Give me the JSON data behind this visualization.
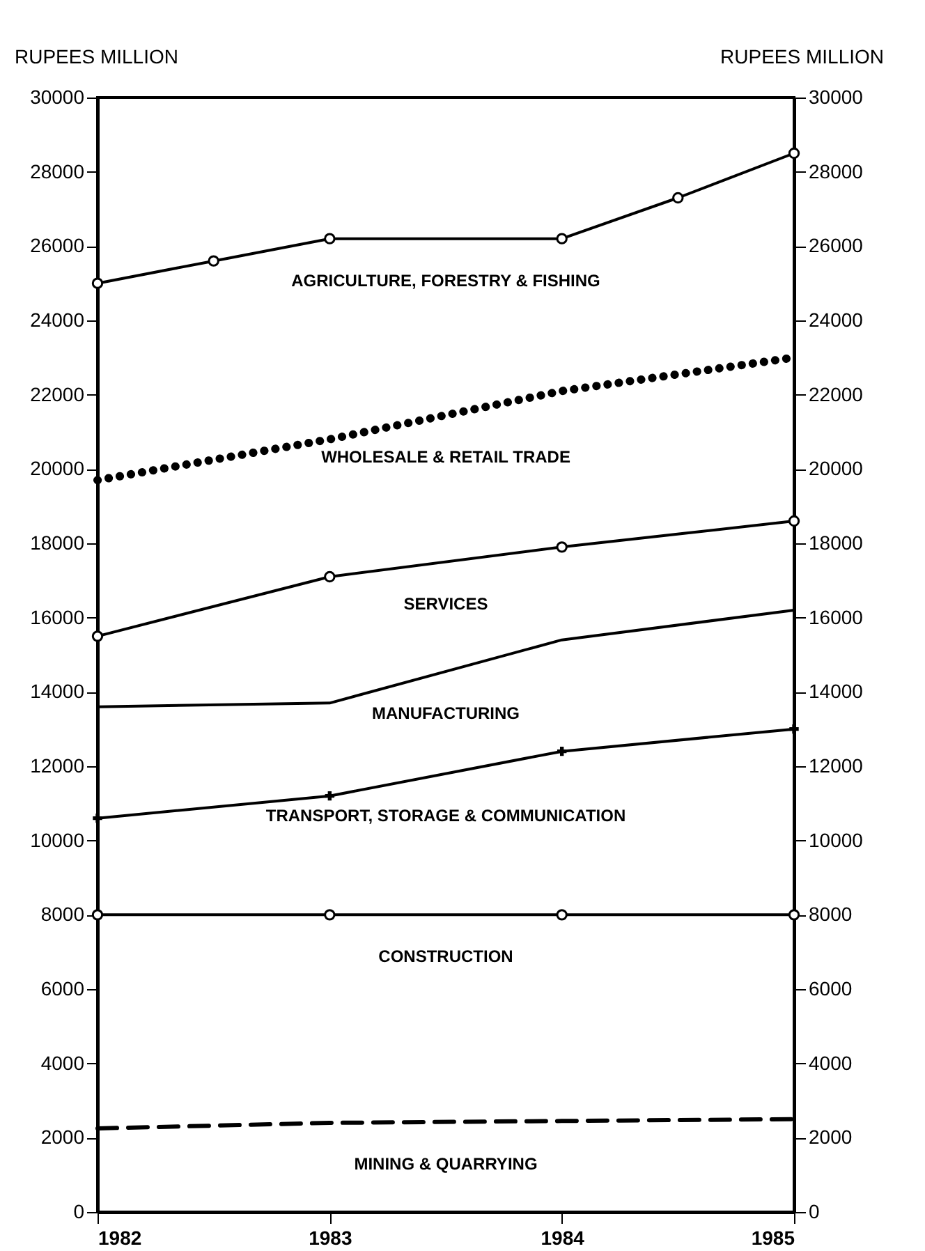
{
  "chart_data": {
    "type": "line",
    "ylabel": "RUPEES MILLION",
    "y2label": "RUPEES MILLION",
    "x": [
      1982,
      1983,
      1984,
      1985
    ],
    "series": [
      {
        "name": "AGRICULTURE, FORESTRY & FISHING",
        "color": "#000000",
        "marker": "circle",
        "line_style": "solid",
        "x": [
          1982,
          1982.5,
          1983,
          1984,
          1984.5,
          1985
        ],
        "values": [
          25000,
          25600,
          26200,
          26200,
          27300,
          28500
        ]
      },
      {
        "name": "WHOLESALE & RETAIL TRADE",
        "color": "#000000",
        "marker": "none",
        "line_style": "dotted",
        "values": [
          19700,
          20800,
          22100,
          23000
        ]
      },
      {
        "name": "SERVICES",
        "color": "#000000",
        "marker": "circle",
        "line_style": "solid",
        "values": [
          15500,
          17100,
          17900,
          18600
        ]
      },
      {
        "name": "MANUFACTURING",
        "color": "#000000",
        "marker": "none",
        "line_style": "solid",
        "values": [
          13600,
          13700,
          15400,
          16200
        ]
      },
      {
        "name": "TRANSPORT, STORAGE & COMMUNICATION",
        "color": "#000000",
        "marker": "cross",
        "line_style": "solid",
        "values": [
          10600,
          11200,
          12400,
          13000
        ]
      },
      {
        "name": "CONSTRUCTION",
        "color": "#000000",
        "marker": "circle",
        "line_style": "solid",
        "values": [
          8000,
          8000,
          8000,
          8000
        ]
      },
      {
        "name": "MINING & QUARRYING",
        "color": "#000000",
        "marker": "none",
        "line_style": "dashed",
        "values": [
          2250,
          2400,
          2450,
          2500
        ]
      }
    ],
    "xlim": [
      1982,
      1985
    ],
    "xticks": [
      1982,
      1983,
      1984,
      1985
    ],
    "ylim": [
      0,
      30000
    ],
    "yticks": [
      0,
      2000,
      4000,
      6000,
      8000,
      10000,
      12000,
      14000,
      16000,
      18000,
      20000,
      22000,
      24000,
      26000,
      28000,
      30000
    ],
    "y2lim": [
      0,
      30000
    ],
    "y2ticks": [
      0,
      2000,
      4000,
      6000,
      8000,
      10000,
      12000,
      14000,
      16000,
      18000,
      20000,
      22000,
      24000,
      26000,
      28000,
      30000
    ],
    "grid": false
  }
}
